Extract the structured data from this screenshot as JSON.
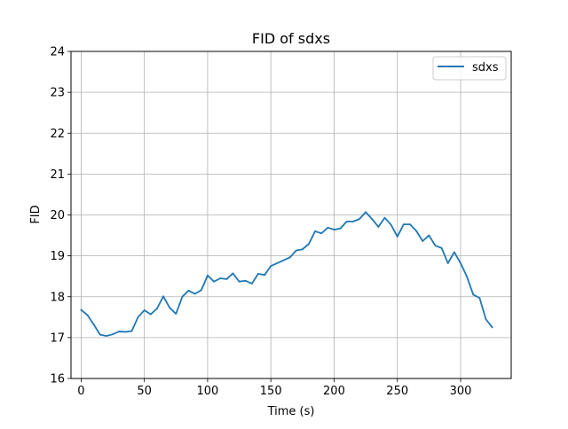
{
  "chart_data": {
    "type": "line",
    "title": "FID of sdxs",
    "xlabel": "Time (s)",
    "ylabel": "FID",
    "xlim": [
      -8,
      340
    ],
    "ylim": [
      16,
      24
    ],
    "xticks": [
      0,
      50,
      100,
      150,
      200,
      250,
      300
    ],
    "yticks": [
      16,
      17,
      18,
      19,
      20,
      21,
      22,
      23,
      24
    ],
    "grid": true,
    "legend_position": "top-right",
    "series": [
      {
        "name": "sdxs",
        "color": "#1f77b4",
        "x": [
          0,
          5,
          10,
          15,
          20,
          25,
          30,
          35,
          40,
          45,
          50,
          55,
          60,
          65,
          70,
          75,
          80,
          85,
          90,
          95,
          100,
          105,
          110,
          115,
          120,
          125,
          130,
          135,
          140,
          145,
          150,
          155,
          160,
          165,
          170,
          175,
          180,
          185,
          190,
          195,
          200,
          205,
          210,
          215,
          220,
          225,
          230,
          235,
          240,
          245,
          250,
          255,
          260,
          265,
          270,
          275,
          280,
          285,
          290,
          295,
          300,
          305,
          310,
          315,
          320,
          325
        ],
        "y": [
          17.68,
          17.55,
          17.32,
          17.07,
          17.04,
          17.08,
          17.15,
          17.14,
          17.16,
          17.5,
          17.67,
          17.57,
          17.71,
          18.01,
          17.73,
          17.58,
          18.0,
          18.15,
          18.07,
          18.16,
          18.52,
          18.37,
          18.45,
          18.43,
          18.57,
          18.37,
          18.39,
          18.32,
          18.56,
          18.53,
          18.75,
          18.82,
          18.89,
          18.96,
          19.13,
          19.16,
          19.29,
          19.6,
          19.55,
          19.69,
          19.64,
          19.67,
          19.84,
          19.84,
          19.9,
          20.07,
          19.9,
          19.71,
          19.93,
          19.76,
          19.47,
          19.77,
          19.77,
          19.61,
          19.36,
          19.5,
          19.25,
          19.19,
          18.82,
          19.09,
          18.82,
          18.49,
          18.05,
          17.97,
          17.45,
          17.25
        ]
      }
    ]
  }
}
